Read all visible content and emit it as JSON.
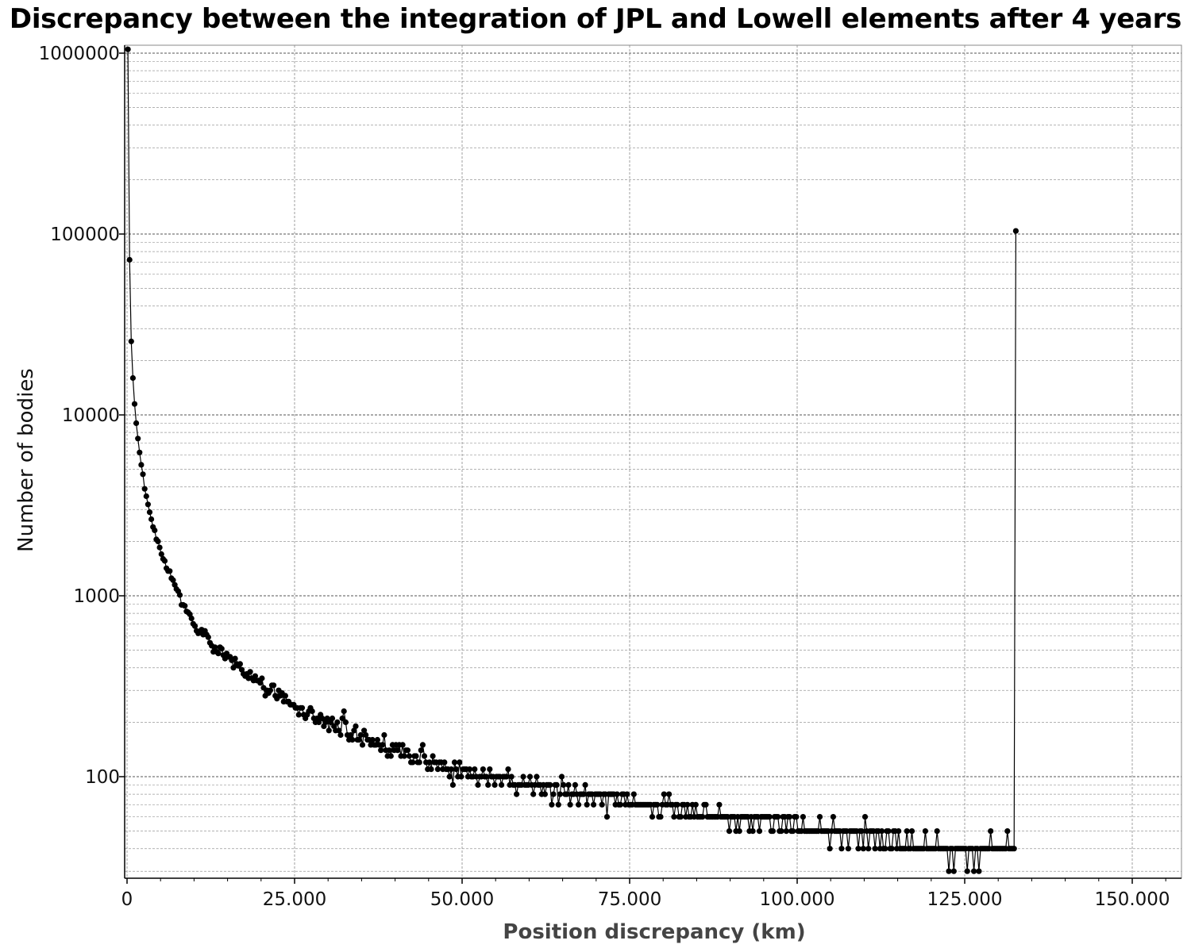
{
  "chart_data": {
    "type": "line",
    "title": "Discrepancy between the integration of JPL and Lowell elements after 4 years",
    "xlabel": "Position discrepancy (km)",
    "ylabel": "Number of bodies",
    "x_scale": "linear",
    "y_scale": "log",
    "xlim": [
      -200,
      157000
    ],
    "ylim": [
      27,
      1100000
    ],
    "x_ticks": [
      0,
      25000,
      50000,
      75000,
      100000,
      125000,
      150000
    ],
    "x_tick_labels": [
      "0",
      "25.000",
      "50.000",
      "75.000",
      "100.000",
      "125.000",
      "150.000"
    ],
    "y_ticks": [
      100,
      1000,
      10000,
      100000,
      1000000
    ],
    "y_tick_labels": [
      "100",
      "1000",
      "10000",
      "100000",
      "1000000"
    ],
    "grid": true,
    "legend": "none",
    "marker": "circle",
    "line_color": "#000000",
    "x_bin_width_km": 250,
    "series": [
      {
        "x_start": 125,
        "x_step": 250,
        "values": [
          1050000,
          72000,
          25500,
          16000,
          11500,
          9000,
          7400,
          6200,
          5300,
          4700,
          3900,
          3550,
          3200,
          2900,
          2650,
          2400,
          2300,
          2050,
          2000,
          1850,
          1700,
          1600,
          1560,
          1420,
          1370,
          1370,
          1250,
          1220,
          1150,
          1090,
          1060,
          1010,
          890,
          890,
          880,
          820,
          810,
          790,
          750,
          700,
          680,
          640,
          620,
          630,
          650,
          610,
          640,
          610,
          590,
          550,
          530,
          490,
          520,
          490,
          480,
          520,
          510,
          470,
          450,
          480,
          460,
          460,
          440,
          400,
          450,
          420,
          410,
          420,
          390,
          370,
          360,
          370,
          350,
          380,
          350,
          340,
          360,
          340,
          340,
          330,
          350,
          310,
          280,
          300,
          290,
          300,
          320,
          320,
          280,
          270,
          300,
          280,
          290,
          260,
          280,
          260,
          260,
          250,
          250,
          250,
          240,
          240,
          220,
          240,
          240,
          220,
          210,
          220,
          230,
          240,
          230,
          210,
          200,
          210,
          200,
          220,
          210,
          190,
          200,
          210,
          180,
          200,
          210,
          190,
          180,
          200,
          180,
          170,
          210,
          230,
          200,
          170,
          160,
          170,
          160,
          180,
          190,
          160,
          160,
          170,
          150,
          180,
          170,
          160,
          160,
          150,
          160,
          150,
          150,
          160,
          150,
          140,
          150,
          170,
          140,
          130,
          140,
          130,
          150,
          140,
          150,
          140,
          150,
          130,
          150,
          130,
          140,
          140,
          130,
          120,
          120,
          130,
          130,
          120,
          120,
          140,
          150,
          130,
          120,
          110,
          120,
          110,
          130,
          120,
          120,
          110,
          120,
          120,
          110,
          120,
          110,
          110,
          100,
          110,
          90,
          120,
          110,
          100,
          120,
          100,
          110,
          110,
          110,
          100,
          110,
          100,
          100,
          110,
          100,
          90,
          100,
          100,
          110,
          100,
          100,
          90,
          110,
          100,
          100,
          90,
          100,
          100,
          100,
          90,
          100,
          100,
          100,
          110,
          90,
          100,
          90,
          90,
          80,
          90,
          90,
          90,
          100,
          90,
          90,
          90,
          100,
          90,
          80,
          90,
          100,
          90,
          90,
          80,
          90,
          80,
          90,
          90,
          90,
          70,
          80,
          90,
          90,
          70,
          80,
          100,
          90,
          80,
          80,
          90,
          70,
          80,
          80,
          90,
          80,
          70,
          80,
          80,
          80,
          90,
          70,
          80,
          80,
          80,
          70,
          80,
          80,
          80,
          80,
          70,
          80,
          80,
          60,
          80,
          80,
          80,
          80,
          70,
          80,
          70,
          70,
          80,
          80,
          70,
          80,
          70,
          70,
          70,
          80,
          70,
          70,
          70,
          70,
          70,
          70,
          70,
          70,
          70,
          70,
          60,
          70,
          70,
          70,
          60,
          60,
          70,
          80,
          70,
          70,
          80,
          70,
          70,
          60,
          70,
          70,
          60,
          60,
          70,
          70,
          60,
          70,
          60,
          60,
          70,
          60,
          70,
          60,
          60,
          60,
          60,
          70,
          70,
          60,
          60,
          60,
          60,
          60,
          60,
          60,
          70,
          60,
          60,
          60,
          60,
          60,
          50,
          60,
          60,
          60,
          50,
          60,
          50,
          60,
          60,
          60,
          60,
          60,
          50,
          60,
          50,
          60,
          60,
          60,
          50,
          60,
          60,
          60,
          60,
          60,
          60,
          50,
          50,
          60,
          60,
          60,
          50,
          50,
          60,
          60,
          50,
          60,
          60,
          50,
          50,
          60,
          60,
          50,
          50,
          50,
          60,
          50,
          50,
          50,
          50,
          50,
          50,
          50,
          50,
          50,
          60,
          50,
          50,
          50,
          50,
          50,
          40,
          50,
          60,
          50,
          50,
          50,
          50,
          40,
          50,
          50,
          50,
          40,
          50,
          50,
          50,
          50,
          50,
          40,
          50,
          50,
          40,
          60,
          50,
          40,
          50,
          50,
          50,
          40,
          50,
          50,
          40,
          50,
          40,
          40,
          50,
          50,
          40,
          40,
          50,
          50,
          40,
          50,
          40,
          40,
          40,
          40,
          50,
          40,
          40,
          50,
          40,
          40,
          40,
          40,
          40,
          40,
          40,
          50,
          40,
          40,
          40,
          40,
          40,
          40,
          50,
          40,
          40,
          40,
          40,
          40,
          40,
          30,
          40,
          40,
          30,
          40,
          40,
          40,
          40,
          40,
          40,
          40,
          30,
          40,
          40,
          40,
          30,
          40,
          40,
          30,
          40,
          40,
          40,
          40,
          40,
          40,
          50,
          40,
          40,
          40,
          40,
          40,
          40,
          40,
          40,
          40,
          50,
          40,
          40,
          40,
          40,
          104000
        ]
      }
    ]
  }
}
